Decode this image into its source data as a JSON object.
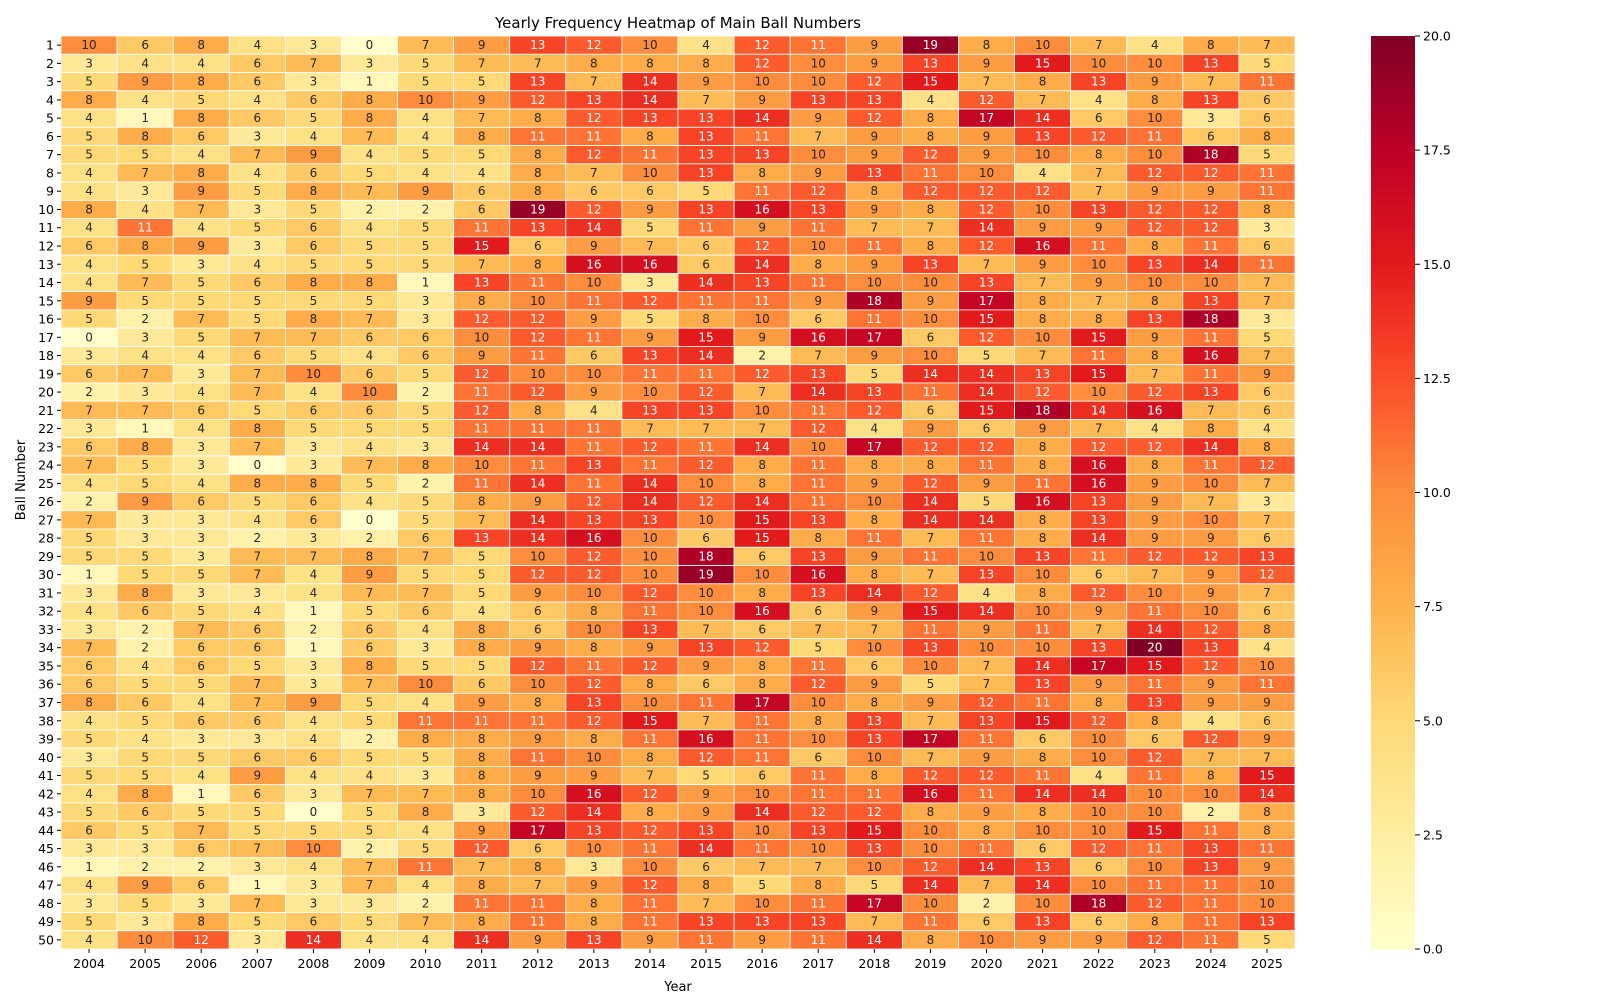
{
  "chart_data": {
    "type": "heatmap",
    "title": "Yearly Frequency Heatmap of Main Ball Numbers",
    "xlabel": "Year",
    "ylabel": "Ball Number",
    "x": [
      "2004",
      "2005",
      "2006",
      "2007",
      "2008",
      "2009",
      "2010",
      "2011",
      "2012",
      "2013",
      "2014",
      "2015",
      "2016",
      "2017",
      "2018",
      "2019",
      "2020",
      "2021",
      "2022",
      "2023",
      "2024",
      "2025"
    ],
    "y": [
      "1",
      "2",
      "3",
      "4",
      "5",
      "6",
      "7",
      "8",
      "9",
      "10",
      "11",
      "12",
      "13",
      "14",
      "15",
      "16",
      "17",
      "18",
      "19",
      "20",
      "21",
      "22",
      "23",
      "24",
      "25",
      "26",
      "27",
      "28",
      "29",
      "30",
      "31",
      "32",
      "33",
      "34",
      "35",
      "36",
      "37",
      "38",
      "39",
      "40",
      "41",
      "42",
      "43",
      "44",
      "45",
      "46",
      "47",
      "48",
      "49",
      "50"
    ],
    "values": [
      [
        10,
        6,
        8,
        4,
        3,
        0,
        7,
        9,
        13,
        12,
        10,
        4,
        12,
        11,
        9,
        19,
        8,
        10,
        7,
        4,
        8,
        7
      ],
      [
        3,
        4,
        4,
        6,
        7,
        3,
        5,
        7,
        7,
        8,
        8,
        8,
        12,
        10,
        9,
        13,
        9,
        15,
        10,
        10,
        13,
        5
      ],
      [
        5,
        9,
        8,
        6,
        3,
        1,
        5,
        5,
        13,
        7,
        14,
        9,
        10,
        10,
        12,
        15,
        7,
        8,
        13,
        9,
        7,
        11
      ],
      [
        8,
        4,
        5,
        4,
        6,
        8,
        10,
        9,
        12,
        13,
        14,
        7,
        9,
        13,
        13,
        4,
        12,
        7,
        4,
        8,
        13,
        6
      ],
      [
        4,
        1,
        8,
        6,
        5,
        8,
        4,
        7,
        8,
        12,
        13,
        13,
        14,
        9,
        12,
        8,
        17,
        14,
        6,
        10,
        3,
        6
      ],
      [
        5,
        8,
        6,
        3,
        4,
        7,
        4,
        8,
        11,
        11,
        8,
        13,
        11,
        7,
        9,
        8,
        9,
        13,
        12,
        11,
        6,
        8
      ],
      [
        5,
        5,
        4,
        7,
        9,
        4,
        5,
        5,
        8,
        12,
        11,
        13,
        13,
        10,
        9,
        12,
        9,
        10,
        8,
        10,
        18,
        5
      ],
      [
        4,
        7,
        8,
        4,
        6,
        5,
        4,
        4,
        8,
        7,
        10,
        13,
        8,
        9,
        13,
        11,
        10,
        4,
        7,
        12,
        12,
        11
      ],
      [
        4,
        3,
        9,
        5,
        8,
        7,
        9,
        6,
        8,
        6,
        6,
        5,
        11,
        12,
        8,
        12,
        12,
        12,
        7,
        9,
        9,
        11
      ],
      [
        8,
        4,
        7,
        3,
        5,
        2,
        2,
        6,
        19,
        12,
        9,
        13,
        16,
        13,
        9,
        8,
        12,
        10,
        13,
        12,
        12,
        8
      ],
      [
        4,
        11,
        4,
        5,
        6,
        4,
        5,
        11,
        13,
        14,
        5,
        11,
        9,
        11,
        7,
        7,
        14,
        9,
        9,
        12,
        12,
        3
      ],
      [
        6,
        8,
        9,
        3,
        6,
        5,
        5,
        15,
        6,
        9,
        7,
        6,
        12,
        10,
        11,
        8,
        12,
        16,
        11,
        8,
        11,
        6
      ],
      [
        4,
        5,
        3,
        4,
        5,
        5,
        5,
        7,
        8,
        16,
        16,
        6,
        14,
        8,
        9,
        13,
        7,
        9,
        10,
        13,
        14,
        11
      ],
      [
        4,
        7,
        5,
        6,
        8,
        8,
        1,
        13,
        11,
        10,
        3,
        14,
        13,
        11,
        10,
        10,
        13,
        7,
        9,
        10,
        10,
        7
      ],
      [
        9,
        5,
        5,
        5,
        5,
        5,
        3,
        8,
        10,
        11,
        12,
        11,
        11,
        9,
        18,
        9,
        17,
        8,
        7,
        8,
        13,
        7
      ],
      [
        5,
        2,
        7,
        5,
        8,
        7,
        3,
        12,
        12,
        9,
        5,
        8,
        10,
        6,
        11,
        10,
        15,
        8,
        8,
        13,
        18,
        3
      ],
      [
        0,
        3,
        5,
        7,
        7,
        6,
        6,
        10,
        12,
        11,
        9,
        15,
        9,
        16,
        17,
        6,
        12,
        10,
        15,
        9,
        11,
        5
      ],
      [
        3,
        4,
        4,
        6,
        5,
        4,
        6,
        9,
        11,
        6,
        13,
        14,
        2,
        7,
        9,
        10,
        5,
        7,
        11,
        8,
        16,
        7
      ],
      [
        6,
        7,
        3,
        7,
        10,
        6,
        5,
        12,
        10,
        10,
        11,
        11,
        12,
        13,
        5,
        14,
        14,
        13,
        15,
        7,
        11,
        9
      ],
      [
        2,
        3,
        4,
        7,
        4,
        10,
        2,
        11,
        12,
        9,
        10,
        12,
        7,
        14,
        13,
        11,
        14,
        12,
        10,
        12,
        13,
        6
      ],
      [
        7,
        7,
        6,
        5,
        6,
        6,
        5,
        12,
        8,
        4,
        13,
        13,
        10,
        11,
        12,
        6,
        15,
        18,
        14,
        16,
        7,
        6
      ],
      [
        3,
        1,
        4,
        8,
        5,
        5,
        5,
        11,
        11,
        11,
        7,
        7,
        7,
        12,
        4,
        9,
        6,
        9,
        7,
        4,
        8,
        4
      ],
      [
        6,
        8,
        3,
        7,
        3,
        4,
        3,
        14,
        14,
        11,
        12,
        11,
        14,
        10,
        17,
        12,
        12,
        8,
        12,
        12,
        14,
        8
      ],
      [
        7,
        5,
        3,
        0,
        3,
        7,
        8,
        10,
        11,
        13,
        11,
        12,
        8,
        11,
        8,
        8,
        11,
        8,
        16,
        8,
        11,
        12
      ],
      [
        4,
        5,
        4,
        8,
        8,
        5,
        2,
        11,
        14,
        11,
        14,
        10,
        8,
        11,
        9,
        12,
        9,
        11,
        16,
        9,
        10,
        7
      ],
      [
        2,
        9,
        6,
        5,
        6,
        4,
        5,
        8,
        9,
        12,
        14,
        12,
        14,
        11,
        10,
        14,
        5,
        16,
        13,
        9,
        7,
        3
      ],
      [
        7,
        3,
        3,
        4,
        6,
        0,
        5,
        7,
        14,
        13,
        13,
        10,
        15,
        13,
        8,
        14,
        14,
        8,
        13,
        9,
        10,
        7
      ],
      [
        5,
        3,
        3,
        2,
        3,
        2,
        6,
        13,
        14,
        16,
        10,
        6,
        15,
        8,
        11,
        7,
        11,
        8,
        14,
        9,
        9,
        6
      ],
      [
        5,
        5,
        3,
        7,
        7,
        8,
        7,
        5,
        10,
        12,
        10,
        18,
        6,
        13,
        9,
        11,
        10,
        13,
        11,
        12,
        12,
        13
      ],
      [
        1,
        5,
        5,
        7,
        4,
        9,
        5,
        5,
        12,
        12,
        10,
        19,
        10,
        16,
        8,
        7,
        13,
        10,
        6,
        7,
        9,
        12
      ],
      [
        3,
        8,
        3,
        3,
        4,
        7,
        7,
        5,
        9,
        10,
        12,
        10,
        8,
        13,
        14,
        12,
        4,
        8,
        12,
        10,
        9,
        7
      ],
      [
        4,
        6,
        5,
        4,
        1,
        5,
        6,
        4,
        6,
        8,
        11,
        10,
        16,
        6,
        9,
        15,
        14,
        10,
        9,
        11,
        10,
        6
      ],
      [
        3,
        2,
        7,
        6,
        2,
        6,
        4,
        8,
        6,
        10,
        13,
        7,
        6,
        7,
        7,
        11,
        9,
        11,
        7,
        14,
        12,
        8
      ],
      [
        7,
        2,
        6,
        6,
        1,
        6,
        3,
        8,
        9,
        8,
        9,
        13,
        12,
        5,
        10,
        13,
        10,
        10,
        13,
        20,
        13,
        4
      ],
      [
        6,
        4,
        6,
        5,
        3,
        8,
        5,
        5,
        12,
        11,
        12,
        9,
        8,
        11,
        6,
        10,
        7,
        14,
        17,
        15,
        12,
        10
      ],
      [
        6,
        5,
        5,
        7,
        3,
        7,
        10,
        6,
        10,
        12,
        8,
        6,
        8,
        12,
        9,
        5,
        7,
        13,
        9,
        11,
        9,
        11
      ],
      [
        8,
        6,
        4,
        7,
        9,
        5,
        4,
        9,
        8,
        13,
        10,
        11,
        17,
        10,
        8,
        9,
        12,
        11,
        8,
        13,
        9,
        9
      ],
      [
        4,
        5,
        6,
        6,
        4,
        5,
        11,
        11,
        11,
        12,
        15,
        7,
        11,
        8,
        13,
        7,
        13,
        15,
        12,
        8,
        4,
        6
      ],
      [
        5,
        4,
        3,
        3,
        4,
        2,
        8,
        8,
        9,
        8,
        11,
        16,
        11,
        10,
        13,
        17,
        11,
        6,
        10,
        6,
        12,
        9
      ],
      [
        3,
        5,
        5,
        6,
        6,
        5,
        5,
        8,
        11,
        10,
        8,
        12,
        11,
        6,
        10,
        7,
        9,
        8,
        10,
        12,
        7,
        7
      ],
      [
        5,
        5,
        4,
        9,
        4,
        4,
        3,
        8,
        9,
        9,
        7,
        5,
        6,
        11,
        8,
        12,
        12,
        11,
        4,
        11,
        8,
        15
      ],
      [
        4,
        8,
        1,
        6,
        3,
        7,
        7,
        8,
        10,
        16,
        12,
        9,
        10,
        11,
        11,
        16,
        11,
        14,
        14,
        10,
        10,
        14
      ],
      [
        5,
        6,
        5,
        5,
        0,
        5,
        8,
        3,
        12,
        14,
        8,
        9,
        14,
        12,
        12,
        8,
        9,
        8,
        10,
        10,
        2,
        8
      ],
      [
        6,
        5,
        7,
        5,
        5,
        5,
        4,
        9,
        17,
        13,
        12,
        13,
        10,
        13,
        15,
        10,
        8,
        10,
        10,
        15,
        11,
        8
      ],
      [
        3,
        3,
        6,
        7,
        10,
        2,
        5,
        12,
        6,
        10,
        11,
        14,
        11,
        10,
        13,
        10,
        11,
        6,
        12,
        11,
        13,
        11
      ],
      [
        1,
        2,
        2,
        3,
        4,
        7,
        11,
        7,
        8,
        3,
        10,
        6,
        7,
        7,
        10,
        12,
        14,
        13,
        6,
        10,
        13,
        9
      ],
      [
        4,
        9,
        6,
        1,
        3,
        7,
        4,
        8,
        7,
        9,
        12,
        8,
        5,
        8,
        5,
        14,
        7,
        14,
        10,
        11,
        11,
        10
      ],
      [
        3,
        5,
        3,
        7,
        3,
        3,
        2,
        11,
        11,
        8,
        11,
        7,
        10,
        11,
        17,
        10,
        2,
        10,
        18,
        12,
        11,
        10
      ],
      [
        5,
        3,
        8,
        5,
        6,
        5,
        7,
        8,
        11,
        8,
        11,
        13,
        13,
        13,
        7,
        11,
        6,
        13,
        6,
        8,
        11,
        13
      ],
      [
        4,
        10,
        12,
        3,
        14,
        4,
        4,
        14,
        9,
        13,
        9,
        11,
        9,
        11,
        14,
        8,
        10,
        9,
        9,
        12,
        11,
        5
      ]
    ],
    "vmin": 0,
    "vmax": 20,
    "colorbar_ticks": [
      "0.0",
      "2.5",
      "5.0",
      "7.5",
      "10.0",
      "12.5",
      "15.0",
      "17.5",
      "20.0"
    ],
    "colormap": "YlOrRd"
  }
}
